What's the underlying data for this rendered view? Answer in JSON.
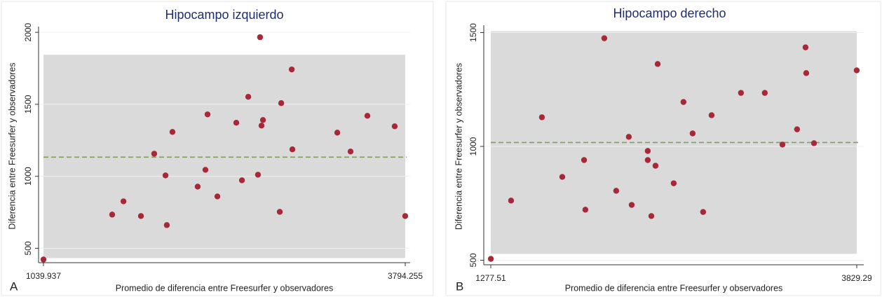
{
  "chart_data": [
    {
      "type": "scatter",
      "panel_label": "A",
      "title": "Hipocampo izquierdo",
      "x_label": "Promedio de diferencia entre Freesurfer y observadores",
      "y_label": "Diferencia entre Freesurfer y observadores",
      "x": [
        1040,
        1563,
        1649,
        1782,
        1883,
        1969,
        1979,
        2022,
        2214,
        2273,
        2289,
        2364,
        2508,
        2551,
        2599,
        2673,
        2689,
        2700,
        2711,
        2839,
        2850,
        2930,
        2935,
        3277,
        3378,
        3506,
        3714,
        3794
      ],
      "values": [
        422,
        734,
        826,
        724,
        1157,
        1006,
        661,
        1308,
        928,
        1045,
        1430,
        860,
        1372,
        972,
        1552,
        1011,
        1966,
        1352,
        1391,
        753,
        1508,
        1742,
        1187,
        1303,
        1172,
        1420,
        1347,
        724
      ],
      "color": "#a82838",
      "limits_of_agreement": [
        432,
        1844
      ],
      "mean_difference": 1133,
      "band_color": "#dadada",
      "mean_color": "#7fa05a",
      "xlim": [
        1039.937,
        3794.255
      ],
      "xticks": [
        1039.937,
        3794.255
      ],
      "ylim": [
        400,
        2020
      ],
      "yticks": [
        500,
        1000,
        1500,
        2000
      ],
      "grid": true
    },
    {
      "type": "scatter",
      "panel_label": "B",
      "title": "Hipocampo derecho",
      "x_label": "Promedio de diferencia entre Freesurfer y observadores",
      "y_label": "Diferencia entre Freesurfer y observadores",
      "x": [
        1278,
        1419,
        1634,
        1776,
        1928,
        1937,
        2069,
        2152,
        2240,
        2260,
        2372,
        2372,
        2397,
        2426,
        2441,
        2553,
        2621,
        2685,
        2758,
        2817,
        3022,
        3188,
        3311,
        3413,
        3472,
        3477,
        3531,
        3829
      ],
      "values": [
        506,
        762,
        1128,
        866,
        940,
        722,
        1475,
        805,
        1042,
        743,
        980,
        940,
        694,
        915,
        1362,
        838,
        1195,
        1057,
        712,
        1137,
        1235,
        1235,
        1008,
        1075,
        1435,
        1322,
        1014,
        1334
      ],
      "color": "#a82838",
      "limits_of_agreement": [
        528,
        1506
      ],
      "mean_difference": 1017,
      "band_color": "#dadada",
      "mean_color": "#7fa05a",
      "xlim": [
        1277.51,
        3829.29
      ],
      "xticks": [
        1277.51,
        3829.29
      ],
      "ylim": [
        480,
        1520
      ],
      "yticks": [
        500,
        1000,
        1500
      ],
      "grid": true
    }
  ]
}
